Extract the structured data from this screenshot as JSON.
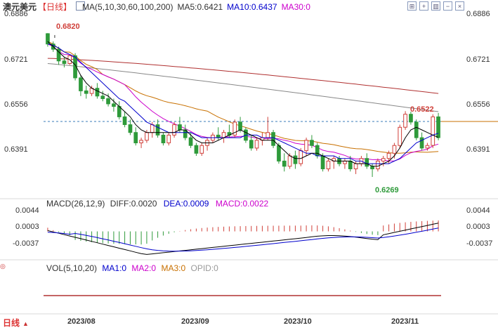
{
  "header": {
    "instrument": "澳元美元",
    "period": "【日线】",
    "ma_legend": "MA(5,10,30,60,100,200)",
    "ma5": "MA5:0.6421",
    "ma10": "MA10:0.6437",
    "ma30": "MA30:0"
  },
  "toolbar": {
    "icons": [
      "grid-icon",
      "plus-icon",
      "bars-icon",
      "minus-icon",
      "close-icon"
    ]
  },
  "price_axis": {
    "labels": [
      "0.6886",
      "0.6721",
      "0.6556",
      "0.6391"
    ]
  },
  "annotations": {
    "high": "0.6820",
    "recent_high": "0.6522",
    "low": "0.6269"
  },
  "macd": {
    "title": "MACD(26,12,9)",
    "diff": "DIFF:0.0020",
    "dea": "DEA:0.0009",
    "macd": "MACD:0.0022",
    "axis_labels": [
      "0.0044",
      "0.0003",
      "-0.0037"
    ]
  },
  "vol": {
    "title": "VOL(5,10,20)",
    "ma1": "MA1:0",
    "ma2": "MA2:0",
    "ma3": "MA3:0",
    "opid": "OPID:0"
  },
  "x_axis": {
    "labels": [
      "2023/08",
      "2023/09",
      "2023/10",
      "2023/11"
    ]
  },
  "period_tab": "日线",
  "colors": {
    "up": "#d0403a",
    "down": "#2e9a3a",
    "ma5": "#000000",
    "ma10": "#0000cc",
    "ma30": "#cc00cc",
    "ma60": "#c87000",
    "ma100": "#888888",
    "ma200": "#b03030"
  },
  "chart_data": {
    "type": "candlestick",
    "ylim": [
      0.6215,
      0.689
    ],
    "candles": [
      [
        0.682,
        0.6822,
        0.677,
        0.678
      ],
      [
        0.678,
        0.679,
        0.675,
        0.676
      ],
      [
        0.676,
        0.677,
        0.67,
        0.6715
      ],
      [
        0.6715,
        0.673,
        0.669,
        0.6705
      ],
      [
        0.6705,
        0.674,
        0.67,
        0.6735
      ],
      [
        0.6735,
        0.6745,
        0.664,
        0.665
      ],
      [
        0.665,
        0.666,
        0.658,
        0.66
      ],
      [
        0.66,
        0.662,
        0.657,
        0.659
      ],
      [
        0.659,
        0.662,
        0.658,
        0.661
      ],
      [
        0.661,
        0.663,
        0.657,
        0.658
      ],
      [
        0.658,
        0.66,
        0.656,
        0.657
      ],
      [
        0.657,
        0.659,
        0.654,
        0.655
      ],
      [
        0.655,
        0.657,
        0.652,
        0.654
      ],
      [
        0.654,
        0.656,
        0.649,
        0.65
      ],
      [
        0.65,
        0.652,
        0.646,
        0.647
      ],
      [
        0.647,
        0.649,
        0.643,
        0.644
      ],
      [
        0.644,
        0.646,
        0.639,
        0.64
      ],
      [
        0.64,
        0.642,
        0.638,
        0.641
      ],
      [
        0.641,
        0.645,
        0.64,
        0.644
      ],
      [
        0.644,
        0.648,
        0.642,
        0.647
      ],
      [
        0.647,
        0.649,
        0.642,
        0.643
      ],
      [
        0.643,
        0.644,
        0.639,
        0.64
      ],
      [
        0.64,
        0.644,
        0.639,
        0.643
      ],
      [
        0.643,
        0.648,
        0.642,
        0.647
      ],
      [
        0.647,
        0.65,
        0.644,
        0.645
      ],
      [
        0.645,
        0.647,
        0.641,
        0.642
      ],
      [
        0.642,
        0.644,
        0.638,
        0.639
      ],
      [
        0.639,
        0.64,
        0.635,
        0.636
      ],
      [
        0.636,
        0.64,
        0.635,
        0.639
      ],
      [
        0.639,
        0.642,
        0.637,
        0.641
      ],
      [
        0.641,
        0.644,
        0.64,
        0.643
      ],
      [
        0.643,
        0.646,
        0.641,
        0.642
      ],
      [
        0.642,
        0.645,
        0.64,
        0.644
      ],
      [
        0.644,
        0.647,
        0.642,
        0.643
      ],
      [
        0.643,
        0.649,
        0.642,
        0.648
      ],
      [
        0.648,
        0.65,
        0.644,
        0.645
      ],
      [
        0.645,
        0.646,
        0.64,
        0.641
      ],
      [
        0.641,
        0.643,
        0.637,
        0.638
      ],
      [
        0.638,
        0.642,
        0.637,
        0.641
      ],
      [
        0.641,
        0.644,
        0.639,
        0.642
      ],
      [
        0.642,
        0.65,
        0.641,
        0.644
      ],
      [
        0.644,
        0.645,
        0.638,
        0.639
      ],
      [
        0.639,
        0.64,
        0.632,
        0.633
      ],
      [
        0.633,
        0.636,
        0.629,
        0.631
      ],
      [
        0.631,
        0.636,
        0.63,
        0.635
      ],
      [
        0.635,
        0.637,
        0.63,
        0.632
      ],
      [
        0.632,
        0.638,
        0.631,
        0.637
      ],
      [
        0.637,
        0.642,
        0.635,
        0.641
      ],
      [
        0.641,
        0.643,
        0.638,
        0.639
      ],
      [
        0.639,
        0.64,
        0.634,
        0.635
      ],
      [
        0.635,
        0.636,
        0.629,
        0.63
      ],
      [
        0.63,
        0.634,
        0.629,
        0.633
      ],
      [
        0.633,
        0.635,
        0.63,
        0.634
      ],
      [
        0.634,
        0.635,
        0.631,
        0.632
      ],
      [
        0.632,
        0.634,
        0.63,
        0.633
      ],
      [
        0.633,
        0.635,
        0.629,
        0.63
      ],
      [
        0.63,
        0.633,
        0.628,
        0.632
      ],
      [
        0.632,
        0.635,
        0.631,
        0.634
      ],
      [
        0.634,
        0.636,
        0.63,
        0.631
      ],
      [
        0.631,
        0.632,
        0.6269,
        0.63
      ],
      [
        0.63,
        0.634,
        0.629,
        0.633
      ],
      [
        0.633,
        0.635,
        0.631,
        0.634
      ],
      [
        0.634,
        0.637,
        0.632,
        0.636
      ],
      [
        0.636,
        0.64,
        0.634,
        0.639
      ],
      [
        0.639,
        0.647,
        0.638,
        0.646
      ],
      [
        0.646,
        0.6522,
        0.645,
        0.651
      ],
      [
        0.651,
        0.652,
        0.647,
        0.648
      ],
      [
        0.648,
        0.649,
        0.641,
        0.642
      ],
      [
        0.642,
        0.644,
        0.637,
        0.638
      ],
      [
        0.638,
        0.64,
        0.637,
        0.639
      ],
      [
        0.639,
        0.651,
        0.638,
        0.65
      ],
      [
        0.65,
        0.6515,
        0.641,
        0.642
      ]
    ],
    "ma_lines": {
      "ma5": [
        0.679,
        0.677,
        0.675,
        0.673,
        0.672,
        0.67,
        0.666,
        0.663,
        0.661,
        0.66,
        0.659,
        0.658,
        0.656,
        0.654,
        0.652,
        0.65,
        0.647,
        0.645,
        0.644,
        0.644,
        0.644,
        0.644,
        0.644,
        0.644,
        0.645,
        0.645,
        0.643,
        0.641,
        0.64,
        0.64,
        0.64,
        0.641,
        0.642,
        0.643,
        0.644,
        0.645,
        0.644,
        0.643,
        0.642,
        0.641,
        0.641,
        0.641,
        0.639,
        0.637,
        0.635,
        0.634,
        0.634,
        0.635,
        0.636,
        0.636,
        0.635,
        0.634,
        0.633,
        0.633,
        0.633,
        0.633,
        0.632,
        0.632,
        0.632,
        0.631,
        0.631,
        0.632,
        0.633,
        0.635,
        0.638,
        0.642,
        0.645,
        0.646,
        0.645,
        0.644,
        0.643,
        0.6421
      ],
      "ma10": [
        0.678,
        0.6775,
        0.6765,
        0.675,
        0.674,
        0.673,
        0.671,
        0.669,
        0.667,
        0.665,
        0.663,
        0.661,
        0.659,
        0.657,
        0.656,
        0.654,
        0.652,
        0.65,
        0.648,
        0.647,
        0.646,
        0.645,
        0.644,
        0.644,
        0.644,
        0.644,
        0.644,
        0.643,
        0.642,
        0.642,
        0.642,
        0.642,
        0.642,
        0.642,
        0.642,
        0.642,
        0.643,
        0.643,
        0.643,
        0.642,
        0.642,
        0.642,
        0.641,
        0.64,
        0.639,
        0.638,
        0.637,
        0.636,
        0.636,
        0.635,
        0.635,
        0.635,
        0.635,
        0.634,
        0.634,
        0.634,
        0.633,
        0.633,
        0.632,
        0.632,
        0.632,
        0.632,
        0.632,
        0.633,
        0.634,
        0.636,
        0.638,
        0.64,
        0.641,
        0.642,
        0.643,
        0.6437
      ]
    }
  }
}
